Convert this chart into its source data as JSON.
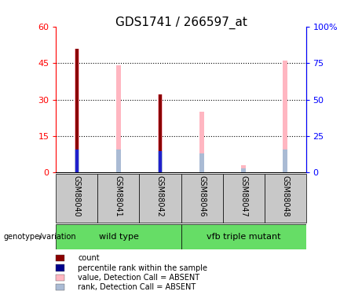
{
  "title": "GDS1741 / 266597_at",
  "categories": [
    "GSM88040",
    "GSM88041",
    "GSM88042",
    "GSM88046",
    "GSM88047",
    "GSM88048"
  ],
  "dark_red_values": [
    51,
    0,
    32,
    0,
    0,
    0
  ],
  "pink_values": [
    51,
    44,
    32,
    25,
    3,
    46
  ],
  "blue_values": [
    16,
    0,
    15,
    0,
    0,
    0
  ],
  "light_blue_values": [
    16,
    16,
    15,
    13,
    3,
    16
  ],
  "ylim_left": [
    0,
    60
  ],
  "ylim_right": [
    0,
    100
  ],
  "yticks_left": [
    0,
    15,
    30,
    45,
    60
  ],
  "yticks_right": [
    0,
    25,
    50,
    75,
    100
  ],
  "ytick_labels_left": [
    "0",
    "15",
    "30",
    "45",
    "60"
  ],
  "ytick_labels_right": [
    "0",
    "25",
    "50",
    "75",
    "100%"
  ],
  "group1_label": "wild type",
  "group2_label": "vfb triple mutant",
  "group1_indices": [
    0,
    1,
    2
  ],
  "group2_indices": [
    3,
    4,
    5
  ],
  "group_label_prefix": "genotype/variation",
  "legend_items": [
    {
      "label": "count",
      "color": "#8B0000"
    },
    {
      "label": "percentile rank within the sample",
      "color": "#00008B"
    },
    {
      "label": "value, Detection Call = ABSENT",
      "color": "#FFB6C1"
    },
    {
      "label": "rank, Detection Call = ABSENT",
      "color": "#AABBD4"
    }
  ],
  "pink_bar_width": 0.12,
  "dark_red_bar_width": 0.08,
  "blue_bar_width": 0.06,
  "light_blue_bar_width": 0.1,
  "dark_red_color": "#8B0000",
  "pink_color": "#FFB6C1",
  "blue_color": "#2020CC",
  "light_blue_color": "#AABBD4",
  "group1_bg": "#66DD66",
  "group2_bg": "#66DD66",
  "sample_bg": "#C8C8C8",
  "title_fontsize": 11,
  "tick_fontsize": 8,
  "label_fontsize": 7
}
